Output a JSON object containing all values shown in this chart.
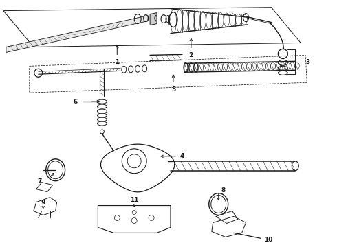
{
  "bg_color": "#ffffff",
  "line_color": "#1a1a1a",
  "fig_width": 4.9,
  "fig_height": 3.6,
  "dpi": 100,
  "label_fs": 6.5,
  "lw_main": 0.9,
  "lw_thin": 0.5,
  "lw_thick": 1.2
}
